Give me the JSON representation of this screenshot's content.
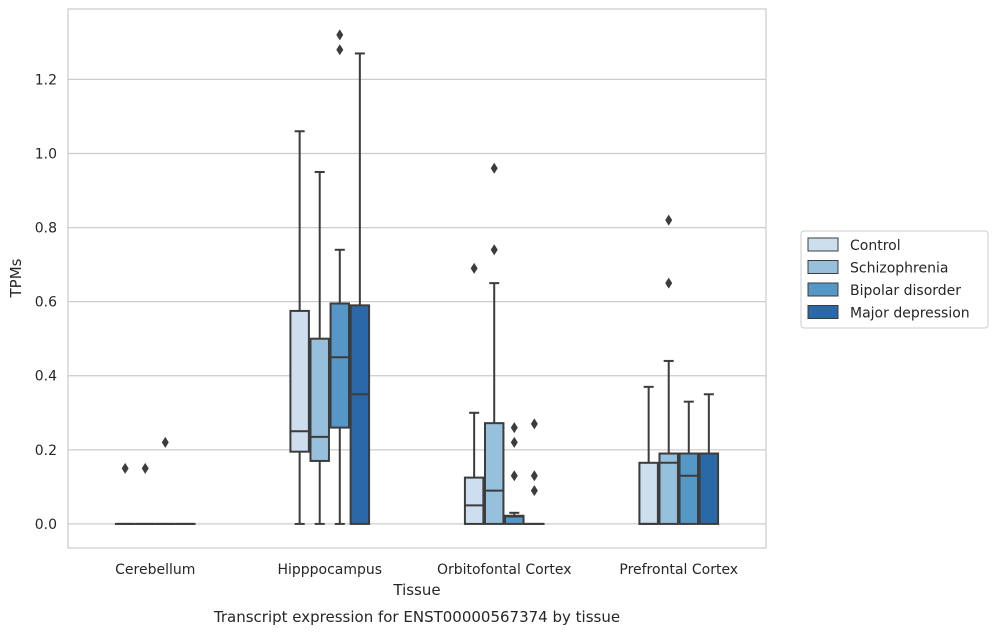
{
  "chart_data": {
    "type": "box",
    "title": "",
    "xlabel": "Tissue",
    "ylabel": "TPMs",
    "caption": "Transcript expression for ENST00000567374 by tissue",
    "ylim": [
      -0.065,
      1.39
    ],
    "yticks": [
      0.0,
      0.2,
      0.4,
      0.6,
      0.8,
      1.0,
      1.2
    ],
    "ytick_labels": [
      "0.0",
      "0.2",
      "0.4",
      "0.6",
      "0.8",
      "1.0",
      "1.2"
    ],
    "grid": "horizontal",
    "legend_position": "right",
    "categories": [
      "Cerebellum",
      "Hipppocampus",
      "Orbitofontal Cortex",
      "Prefrontal Cortex"
    ],
    "series": [
      {
        "name": "Control",
        "color": "#cddeef",
        "boxes": [
          {
            "whislo": 0.0,
            "q1": 0.0,
            "med": 0.0,
            "q3": 0.0,
            "whishi": 0.0,
            "fliers": [
              0.15
            ]
          },
          {
            "whislo": 0.0,
            "q1": 0.195,
            "med": 0.25,
            "q3": 0.575,
            "whishi": 1.06,
            "fliers": []
          },
          {
            "whislo": 0.0,
            "q1": 0.0,
            "med": 0.05,
            "q3": 0.125,
            "whishi": 0.3,
            "fliers": [
              0.69
            ]
          },
          {
            "whislo": 0.0,
            "q1": 0.0,
            "med": 0.0,
            "q3": 0.165,
            "whishi": 0.37,
            "fliers": []
          }
        ]
      },
      {
        "name": "Schizophrenia",
        "color": "#96c0dc",
        "boxes": [
          {
            "whislo": 0.0,
            "q1": 0.0,
            "med": 0.0,
            "q3": 0.0,
            "whishi": 0.0,
            "fliers": [
              0.15
            ]
          },
          {
            "whislo": 0.0,
            "q1": 0.17,
            "med": 0.235,
            "q3": 0.5,
            "whishi": 0.95,
            "fliers": []
          },
          {
            "whislo": 0.0,
            "q1": 0.0,
            "med": 0.09,
            "q3": 0.272,
            "whishi": 0.65,
            "fliers": [
              0.74,
              0.96
            ]
          },
          {
            "whislo": 0.0,
            "q1": 0.0,
            "med": 0.165,
            "q3": 0.19,
            "whishi": 0.44,
            "fliers": [
              0.65,
              0.82
            ]
          }
        ]
      },
      {
        "name": "Bipolar disorder",
        "color": "#5597c6",
        "boxes": [
          {
            "whislo": 0.0,
            "q1": 0.0,
            "med": 0.0,
            "q3": 0.0,
            "whishi": 0.0,
            "fliers": [
              0.22
            ]
          },
          {
            "whislo": 0.0,
            "q1": 0.26,
            "med": 0.45,
            "q3": 0.595,
            "whishi": 0.74,
            "fliers": [
              1.28,
              1.32
            ]
          },
          {
            "whislo": 0.0,
            "q1": 0.0,
            "med": 0.02,
            "q3": 0.022,
            "whishi": 0.03,
            "fliers": [
              0.13,
              0.22,
              0.26
            ]
          },
          {
            "whislo": 0.0,
            "q1": 0.0,
            "med": 0.13,
            "q3": 0.19,
            "whishi": 0.33,
            "fliers": []
          }
        ]
      },
      {
        "name": "Major depression",
        "color": "#2a68a8",
        "boxes": [
          {
            "whislo": 0.0,
            "q1": 0.0,
            "med": 0.0,
            "q3": 0.0,
            "whishi": 0.0,
            "fliers": []
          },
          {
            "whislo": 0.0,
            "q1": 0.0,
            "med": 0.35,
            "q3": 0.59,
            "whishi": 1.27,
            "fliers": []
          },
          {
            "whislo": 0.0,
            "q1": 0.0,
            "med": 0.0,
            "q3": 0.0,
            "whishi": 0.0,
            "fliers": [
              0.09,
              0.13,
              0.27
            ]
          },
          {
            "whislo": 0.0,
            "q1": 0.0,
            "med": 0.19,
            "q3": 0.19,
            "whishi": 0.35,
            "fliers": []
          }
        ]
      }
    ]
  }
}
